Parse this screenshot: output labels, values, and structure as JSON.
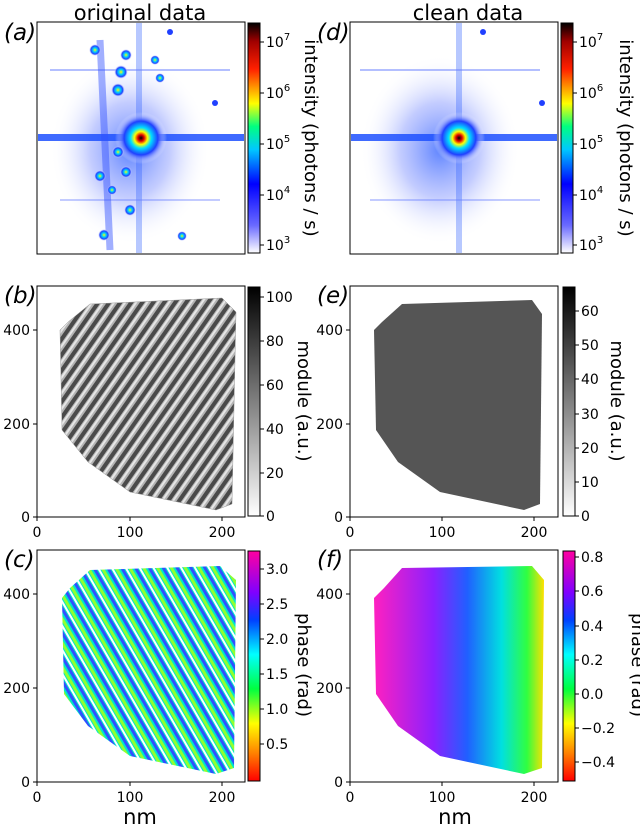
{
  "columns": {
    "left_title": "original data",
    "right_title": "clean data",
    "xlabel": "nm"
  },
  "colorbars": {
    "intensity": {
      "label": "intensity (photons / s)",
      "ticks": [
        "10^7",
        "10^6",
        "10^5",
        "10^4",
        "10^3"
      ],
      "scale": "log"
    },
    "module_b": {
      "label": "module (a.u.)",
      "ticks": [
        "100",
        "80",
        "60",
        "40",
        "20",
        "0"
      ],
      "range": [
        0,
        105
      ]
    },
    "module_e": {
      "label": "module (a.u.)",
      "ticks": [
        "60",
        "50",
        "40",
        "30",
        "20",
        "10",
        "0"
      ],
      "range": [
        0,
        65
      ]
    },
    "phase_c": {
      "label": "phase (rad)",
      "ticks": [
        "3.0",
        "2.5",
        "2.0",
        "1.5",
        "1.0",
        "0.5"
      ],
      "range": [
        0.2,
        3.25
      ]
    },
    "phase_f": {
      "label": "phase (rad)",
      "ticks": [
        "0.8",
        "0.6",
        "0.4",
        "0.2",
        "0.0",
        "−0.2",
        "−0.4"
      ],
      "range": [
        -0.52,
        0.82
      ]
    }
  },
  "chart_data": [
    {
      "panel": "a",
      "letter": "(a)",
      "type": "heatmap",
      "title": "original data",
      "content": "diffraction pattern",
      "colorbar": "intensity (photons / s)"
    },
    {
      "panel": "d",
      "letter": "(d)",
      "type": "heatmap",
      "title": "clean data",
      "content": "diffraction pattern",
      "colorbar": "intensity (photons / s)"
    },
    {
      "panel": "b",
      "letter": "(b)",
      "type": "heatmap",
      "content": "reconstructed module",
      "xlim": [
        0,
        270
      ],
      "ylim": [
        0,
        480
      ],
      "xticks": [
        "0",
        "100",
        "200"
      ],
      "yticks": [
        "0",
        "200",
        "400"
      ],
      "colorbar": "module (a.u.)",
      "clim": [
        0,
        105
      ]
    },
    {
      "panel": "e",
      "letter": "(e)",
      "type": "heatmap",
      "content": "reconstructed module",
      "xlim": [
        0,
        270
      ],
      "ylim": [
        0,
        480
      ],
      "xticks": [
        "0",
        "100",
        "200"
      ],
      "yticks": [
        "0",
        "200",
        "400"
      ],
      "colorbar": "module (a.u.)",
      "clim": [
        0,
        65
      ]
    },
    {
      "panel": "c",
      "letter": "(c)",
      "type": "heatmap",
      "content": "reconstructed phase",
      "xlim": [
        0,
        270
      ],
      "ylim": [
        0,
        480
      ],
      "xticks": [
        "0",
        "100",
        "200"
      ],
      "yticks": [
        "0",
        "200",
        "400"
      ],
      "xlabel": "nm",
      "colorbar": "phase (rad)",
      "clim": [
        0.2,
        3.25
      ]
    },
    {
      "panel": "f",
      "letter": "(f)",
      "type": "heatmap",
      "content": "reconstructed phase",
      "xlim": [
        0,
        270
      ],
      "ylim": [
        0,
        480
      ],
      "xticks": [
        "0",
        "100",
        "200"
      ],
      "yticks": [
        "0",
        "200",
        "400"
      ],
      "xlabel": "nm",
      "colorbar": "phase (rad)",
      "clim": [
        -0.52,
        0.82
      ]
    }
  ]
}
